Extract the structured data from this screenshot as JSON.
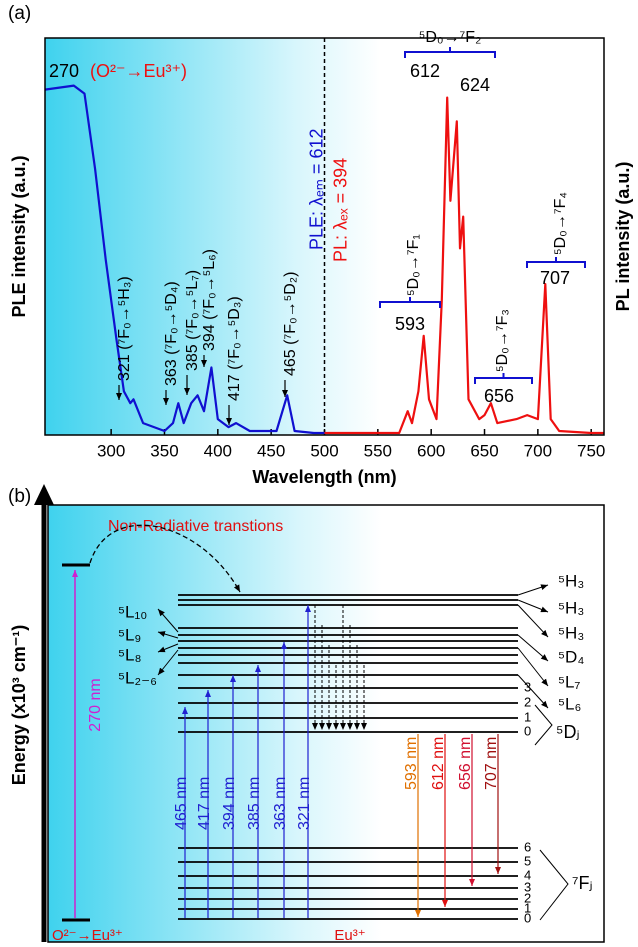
{
  "chart_data": {
    "type": "line",
    "panel_label": "(a)",
    "xlabel": "Wavelength (nm)",
    "ylabel": "PLE intensity (a.u.)",
    "y2label": "PL intensity (a.u.)",
    "x": [
      238,
      265,
      275,
      285,
      295,
      305,
      312,
      318,
      321,
      330,
      350,
      358,
      363,
      368,
      375,
      381,
      387,
      394,
      400,
      410,
      417,
      430,
      455,
      465,
      472,
      490,
      500,
      570,
      578,
      582,
      588,
      593,
      598,
      605,
      610,
      615,
      618,
      621,
      624,
      627,
      630,
      635,
      645,
      650,
      656,
      662,
      680,
      690,
      700,
      707,
      712,
      720,
      750,
      762
    ],
    "series": [
      {
        "name": "PLE: λₑₘ = 612",
        "color": "#1010d0",
        "values": [
          0.87,
          0.88,
          0.86,
          0.67,
          0.44,
          0.24,
          0.11,
          0.08,
          0.09,
          0.03,
          0.01,
          0.03,
          0.08,
          0.03,
          0.08,
          0.1,
          0.06,
          0.17,
          0.04,
          0.02,
          0.03,
          0.01,
          0.01,
          0.1,
          0.01,
          0.005,
          0.005,
          null,
          null,
          null,
          null,
          null,
          null,
          null,
          null,
          null,
          null,
          null,
          null,
          null,
          null,
          null,
          null,
          null,
          null,
          null,
          null,
          null,
          null,
          null,
          null,
          null,
          null,
          null
        ]
      },
      {
        "name": "PL: λₑₓ = 394",
        "color": "#ee1010",
        "axis": "y2",
        "values": [
          null,
          null,
          null,
          null,
          null,
          null,
          null,
          null,
          null,
          null,
          null,
          null,
          null,
          null,
          null,
          null,
          null,
          null,
          null,
          null,
          null,
          null,
          null,
          null,
          null,
          null,
          0.005,
          0.005,
          0.06,
          0.03,
          0.11,
          0.25,
          0.09,
          0.04,
          0.34,
          0.85,
          0.59,
          0.69,
          0.79,
          0.47,
          0.55,
          0.09,
          0.04,
          0.05,
          0.08,
          0.03,
          0.04,
          0.05,
          0.04,
          0.38,
          0.04,
          0.01,
          0.005,
          0.005
        ]
      }
    ],
    "xlim": [
      238,
      762
    ],
    "xticks": [
      300,
      350,
      400,
      450,
      500,
      550,
      600,
      650,
      700,
      750
    ],
    "ylim": [
      0,
      1
    ],
    "y2lim": [
      0,
      1
    ],
    "divider_x": 500,
    "annotations": [
      "270",
      "(O²⁻→Eu³⁺)",
      "321 (⁷F₀→⁵H₃)",
      "363 (⁷F₀→⁵D₄)",
      "385 (⁷F₀→⁵L₇)",
      "394 (⁷F₀→⁵L₆)",
      "417 (⁷F₀→⁵D₃)",
      "465 (⁷F₀→⁵D₂)",
      "⁵D₀→⁷F₂",
      "612",
      "624",
      "⁵D₀→⁷F₁",
      "593",
      "⁵D₀→⁷F₃",
      "656",
      "⁵D₀→⁷F₄",
      "707"
    ]
  },
  "diagram": {
    "panel_label": "(b)",
    "y_axis_title": "Energy (x10³ cm⁻¹)",
    "note": "Non-Radiative transtions",
    "charge_transfer": "270 nm",
    "host_label": "O²⁻→Eu³⁺",
    "ion_label": "Eu³⁺",
    "left_levels": [
      "⁵L₁₀",
      "⁵L₉",
      "⁵L₈",
      "⁵L₂₋₆"
    ],
    "right_levels": [
      "⁵H₃",
      "⁵H₃",
      "⁵H₃",
      "⁵D₄",
      "⁵L₇",
      "⁵L₆"
    ],
    "dj_numbers": [
      "3",
      "2",
      "1",
      "0"
    ],
    "dj_label": "⁵Dⱼ",
    "fj_numbers": [
      "6",
      "5",
      "4",
      "3",
      "2",
      "1",
      "0"
    ],
    "fj_label": "⁷Fⱼ",
    "excitation": [
      "465 nm",
      "417 nm",
      "394 nm",
      "385 nm",
      "363 nm",
      "321 nm"
    ],
    "emission": [
      "593 nm",
      "612 nm",
      "656 nm",
      "707 nm"
    ]
  }
}
